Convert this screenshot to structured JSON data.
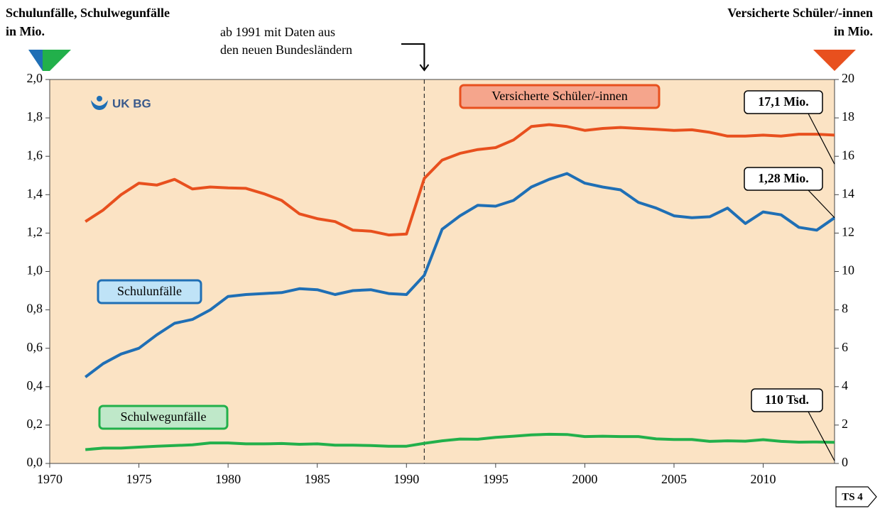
{
  "chart_data": {
    "type": "line",
    "y_label": [
      "Schulunfälle, Schulwegunfälle",
      "in Mio."
    ],
    "y2_label": [
      "Versicherte Schüler/-innen",
      "in Mio."
    ],
    "note": [
      "ab 1991 mit Daten aus",
      "den neuen Bundesländern"
    ],
    "note_x": 1991,
    "logo": "UK BG",
    "badge": "TS 4",
    "callouts": [
      "17,1 Mio.",
      "1,28 Mio.",
      "110 Tsd."
    ],
    "x": [
      1972,
      1973,
      1974,
      1975,
      1976,
      1977,
      1978,
      1979,
      1980,
      1981,
      1982,
      1983,
      1984,
      1985,
      1986,
      1987,
      1988,
      1989,
      1990,
      1991,
      1992,
      1993,
      1994,
      1995,
      1996,
      1997,
      1998,
      1999,
      2000,
      2001,
      2002,
      2003,
      2004,
      2005,
      2006,
      2007,
      2008,
      2009,
      2010,
      2011,
      2012,
      2013,
      2014
    ],
    "xlim": [
      1970,
      2014
    ],
    "xticks": [
      1970,
      1975,
      1980,
      1985,
      1990,
      1995,
      2000,
      2005,
      2010
    ],
    "ylim": [
      0,
      2
    ],
    "yticks": [
      {
        "value": 0,
        "label": "0,0"
      },
      {
        "value": 0.2,
        "label": "0,2"
      },
      {
        "value": 0.4,
        "label": "0,4"
      },
      {
        "value": 0.6,
        "label": "0,6"
      },
      {
        "value": 0.8,
        "label": "0,8"
      },
      {
        "value": 1,
        "label": "1,0"
      },
      {
        "value": 1.2,
        "label": "1,2"
      },
      {
        "value": 1.4,
        "label": "1,4"
      },
      {
        "value": 1.6,
        "label": "1,6"
      },
      {
        "value": 1.8,
        "label": "1,8"
      },
      {
        "value": 2,
        "label": "2,0"
      }
    ],
    "y2lim": [
      0,
      20
    ],
    "y2ticks": [
      0,
      2,
      4,
      6,
      8,
      10,
      12,
      14,
      16,
      18,
      20
    ],
    "background": "#fbe3c4",
    "series": [
      {
        "name": "Schulunfälle",
        "color": "#1f6fb5",
        "values": [
          0.45,
          0.52,
          0.57,
          0.6,
          0.67,
          0.73,
          0.75,
          0.8,
          0.87,
          0.88,
          0.885,
          0.89,
          0.91,
          0.905,
          0.88,
          0.9,
          0.905,
          0.885,
          0.88,
          0.98,
          1.22,
          1.29,
          1.345,
          1.34,
          1.37,
          1.44,
          1.48,
          1.51,
          1.46,
          1.44,
          1.425,
          1.36,
          1.33,
          1.29,
          1.28,
          1.285,
          1.33,
          1.25,
          1.31,
          1.295,
          1.23,
          1.215,
          1.28
        ]
      },
      {
        "name": "Schulwegunfälle",
        "color": "#22b04b",
        "values": [
          0.072,
          0.08,
          0.08,
          0.085,
          0.09,
          0.093,
          0.097,
          0.107,
          0.107,
          0.102,
          0.102,
          0.104,
          0.1,
          0.102,
          0.095,
          0.095,
          0.093,
          0.09,
          0.09,
          0.105,
          0.118,
          0.127,
          0.126,
          0.136,
          0.142,
          0.149,
          0.152,
          0.151,
          0.14,
          0.142,
          0.14,
          0.14,
          0.128,
          0.125,
          0.125,
          0.115,
          0.118,
          0.116,
          0.124,
          0.115,
          0.111,
          0.112,
          0.11
        ]
      },
      {
        "name": "Versicherte Schüler/-innen",
        "color": "#e8501e",
        "axis": "y2",
        "values": [
          12.6,
          13.2,
          14.0,
          14.6,
          14.5,
          14.8,
          14.3,
          14.4,
          14.35,
          14.33,
          14.05,
          13.7,
          13.0,
          12.75,
          12.6,
          12.15,
          12.1,
          11.9,
          11.95,
          14.85,
          15.8,
          16.15,
          16.35,
          16.45,
          16.85,
          17.55,
          17.65,
          17.55,
          17.35,
          17.45,
          17.5,
          17.45,
          17.4,
          17.35,
          17.38,
          17.25,
          17.05,
          17.05,
          17.1,
          17.05,
          17.15,
          17.15,
          17.1
        ]
      }
    ]
  }
}
